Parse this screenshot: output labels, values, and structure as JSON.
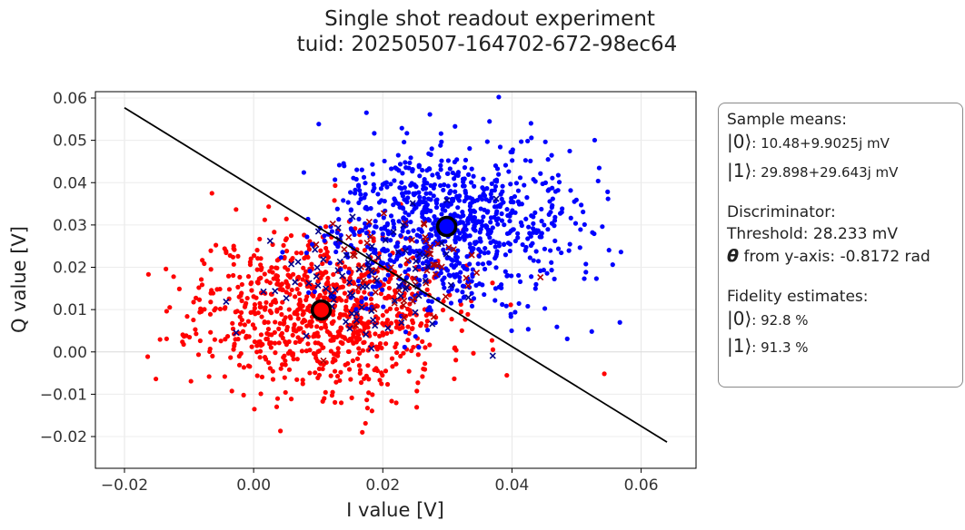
{
  "chart_data": {
    "type": "scatter",
    "title": "Single shot readout experiment",
    "subtitle": "tuid: 20250507-164702-672-98ec64",
    "xlabel": "I value [V]",
    "ylabel": "Q value [V]",
    "xlim": [
      -0.0245,
      0.0685
    ],
    "ylim": [
      -0.0275,
      0.0615
    ],
    "xticks": [
      "−0.02",
      "0.00",
      "0.02",
      "0.04",
      "0.06"
    ],
    "xtick_values": [
      -0.02,
      0.0,
      0.02,
      0.04,
      0.06
    ],
    "yticks": [
      "−0.02",
      "−0.01",
      "0.00",
      "0.01",
      "0.02",
      "0.03",
      "0.04",
      "0.05",
      "0.06"
    ],
    "ytick_values": [
      -0.02,
      -0.01,
      0.0,
      0.01,
      0.02,
      0.03,
      0.04,
      0.05,
      0.06
    ],
    "grid": true,
    "series": [
      {
        "kind": "cloud",
        "color": "#ff0000",
        "marker": "dot",
        "center": [
          0.01048,
          0.0099025
        ],
        "sigma": [
          0.0095,
          0.0095
        ],
        "count": 900,
        "seed": 11
      },
      {
        "kind": "cloud",
        "color": "#0000ff",
        "marker": "dot",
        "center": [
          0.029898,
          0.029643
        ],
        "sigma": [
          0.0095,
          0.0095
        ],
        "count": 900,
        "seed": 29
      },
      {
        "kind": "cross",
        "color": "#b00000",
        "marker": "x",
        "center": [
          0.022,
          0.02
        ],
        "sigma": [
          0.007,
          0.007
        ],
        "count": 60,
        "seed": 47
      },
      {
        "kind": "cross",
        "color": "#00008b",
        "marker": "x",
        "center": [
          0.018,
          0.016
        ],
        "sigma": [
          0.008,
          0.008
        ],
        "count": 85,
        "seed": 83
      }
    ],
    "means": [
      {
        "state": "|0⟩",
        "I": 0.01048,
        "Q": 0.0099025,
        "color": "#ff0000"
      },
      {
        "state": "|1⟩",
        "I": 0.029898,
        "Q": 0.029643,
        "color": "#0000ff"
      }
    ],
    "threshold_line": {
      "points": [
        [
          -0.02,
          0.0577
        ],
        [
          0.064,
          -0.0213
        ]
      ],
      "color": "#000000"
    }
  },
  "info_box": {
    "sample_means_label": "Sample means:",
    "mean0_ket": "|0⟩",
    "mean0_value": ": 10.48+9.9025j mV",
    "mean1_ket": "|1⟩",
    "mean1_value": ": 29.898+29.643j mV",
    "discriminator_label": "Discriminator:",
    "threshold_text": "Threshold: 28.233 mV",
    "theta_symbol": "θ",
    "theta_text": " from y-axis: -0.8172 rad",
    "fidelity_label": "Fidelity estimates:",
    "fid0_ket": "|0⟩",
    "fid0_value": ": 92.8 %",
    "fid1_ket": "|1⟩",
    "fid1_value": ": 91.3 %"
  }
}
